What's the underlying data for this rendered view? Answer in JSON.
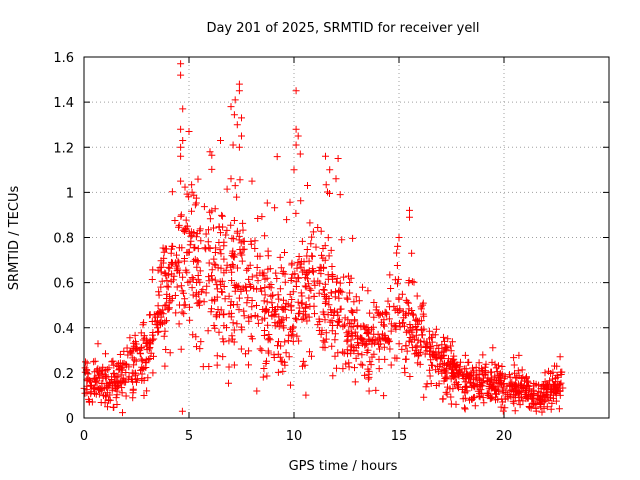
{
  "chart_data": {
    "type": "scatter",
    "title": "Day 201 of 2025, SRMTID for receiver yell",
    "xlabel": "GPS time / hours",
    "ylabel": "SRMTID / TECUs",
    "xlim": [
      0,
      25
    ],
    "ylim": [
      0,
      1.6
    ],
    "xticks": [
      "0",
      "5",
      "10",
      "15",
      "20"
    ],
    "yticks": [
      "0",
      "0.2",
      "0.4",
      "0.6",
      "0.8",
      "1",
      "1.2",
      "1.4",
      "1.6"
    ],
    "grid": true,
    "marker": "+",
    "color": "#ff0000",
    "trend": [
      [
        0.0,
        0.16
      ],
      [
        0.5,
        0.15
      ],
      [
        1.0,
        0.15
      ],
      [
        1.5,
        0.14
      ],
      [
        2.0,
        0.22
      ],
      [
        2.5,
        0.22
      ],
      [
        3.0,
        0.27
      ],
      [
        3.5,
        0.45
      ],
      [
        4.0,
        0.58
      ],
      [
        4.5,
        0.68
      ],
      [
        5.0,
        0.7
      ],
      [
        5.5,
        0.66
      ],
      [
        6.0,
        0.62
      ],
      [
        6.5,
        0.63
      ],
      [
        7.0,
        0.62
      ],
      [
        7.5,
        0.58
      ],
      [
        8.0,
        0.52
      ],
      [
        8.5,
        0.48
      ],
      [
        9.0,
        0.45
      ],
      [
        9.5,
        0.47
      ],
      [
        10.0,
        0.52
      ],
      [
        10.5,
        0.58
      ],
      [
        11.0,
        0.55
      ],
      [
        11.5,
        0.57
      ],
      [
        12.0,
        0.5
      ],
      [
        12.5,
        0.4
      ],
      [
        13.0,
        0.34
      ],
      [
        13.5,
        0.33
      ],
      [
        14.0,
        0.35
      ],
      [
        14.5,
        0.4
      ],
      [
        15.0,
        0.45
      ],
      [
        15.5,
        0.4
      ],
      [
        16.0,
        0.36
      ],
      [
        16.5,
        0.3
      ],
      [
        17.0,
        0.25
      ],
      [
        17.5,
        0.21
      ],
      [
        18.0,
        0.18
      ],
      [
        18.5,
        0.16
      ],
      [
        19.0,
        0.16
      ],
      [
        19.5,
        0.15
      ],
      [
        20.0,
        0.14
      ],
      [
        20.5,
        0.13
      ],
      [
        21.0,
        0.11
      ],
      [
        21.5,
        0.09
      ],
      [
        22.0,
        0.1
      ],
      [
        22.5,
        0.14
      ],
      [
        22.8,
        0.15
      ]
    ],
    "spread": [
      [
        0.0,
        0.06
      ],
      [
        1.5,
        0.06
      ],
      [
        2.0,
        0.08
      ],
      [
        3.0,
        0.1
      ],
      [
        4.0,
        0.16
      ],
      [
        5.0,
        0.22
      ],
      [
        6.0,
        0.22
      ],
      [
        7.0,
        0.24
      ],
      [
        8.0,
        0.2
      ],
      [
        9.0,
        0.18
      ],
      [
        10.0,
        0.2
      ],
      [
        11.0,
        0.18
      ],
      [
        12.0,
        0.16
      ],
      [
        13.0,
        0.12
      ],
      [
        14.0,
        0.12
      ],
      [
        15.0,
        0.14
      ],
      [
        16.0,
        0.1
      ],
      [
        17.0,
        0.08
      ],
      [
        18.0,
        0.06
      ],
      [
        20.0,
        0.05
      ],
      [
        22.8,
        0.05
      ]
    ],
    "peaks": [
      [
        4.6,
        1.57
      ],
      [
        4.6,
        1.52
      ],
      [
        4.7,
        1.37
      ],
      [
        4.6,
        1.28
      ],
      [
        4.7,
        1.23
      ],
      [
        4.6,
        1.2
      ],
      [
        5.0,
        1.27
      ],
      [
        4.6,
        1.16
      ],
      [
        4.6,
        1.05
      ],
      [
        6.0,
        1.18
      ],
      [
        6.5,
        1.23
      ],
      [
        7.0,
        1.38
      ],
      [
        7.2,
        1.41
      ],
      [
        7.4,
        1.48
      ],
      [
        7.4,
        1.45
      ],
      [
        7.5,
        1.33
      ],
      [
        7.3,
        1.3
      ],
      [
        7.5,
        1.25
      ],
      [
        7.1,
        1.21
      ],
      [
        7.4,
        1.2
      ],
      [
        7.0,
        1.06
      ],
      [
        7.2,
        1.03
      ],
      [
        8.0,
        1.05
      ],
      [
        10.1,
        1.45
      ],
      [
        10.1,
        1.28
      ],
      [
        10.2,
        1.25
      ],
      [
        10.1,
        1.21
      ],
      [
        10.3,
        1.17
      ],
      [
        10.0,
        1.1
      ],
      [
        11.5,
        1.16
      ],
      [
        12.1,
        1.15
      ],
      [
        11.7,
        1.1
      ],
      [
        12.0,
        1.06
      ],
      [
        12.2,
        0.99
      ],
      [
        15.5,
        0.92
      ],
      [
        15.5,
        0.89
      ],
      [
        15.0,
        0.8
      ],
      [
        15.6,
        0.73
      ]
    ],
    "n_points": 1700,
    "seed": 201
  }
}
